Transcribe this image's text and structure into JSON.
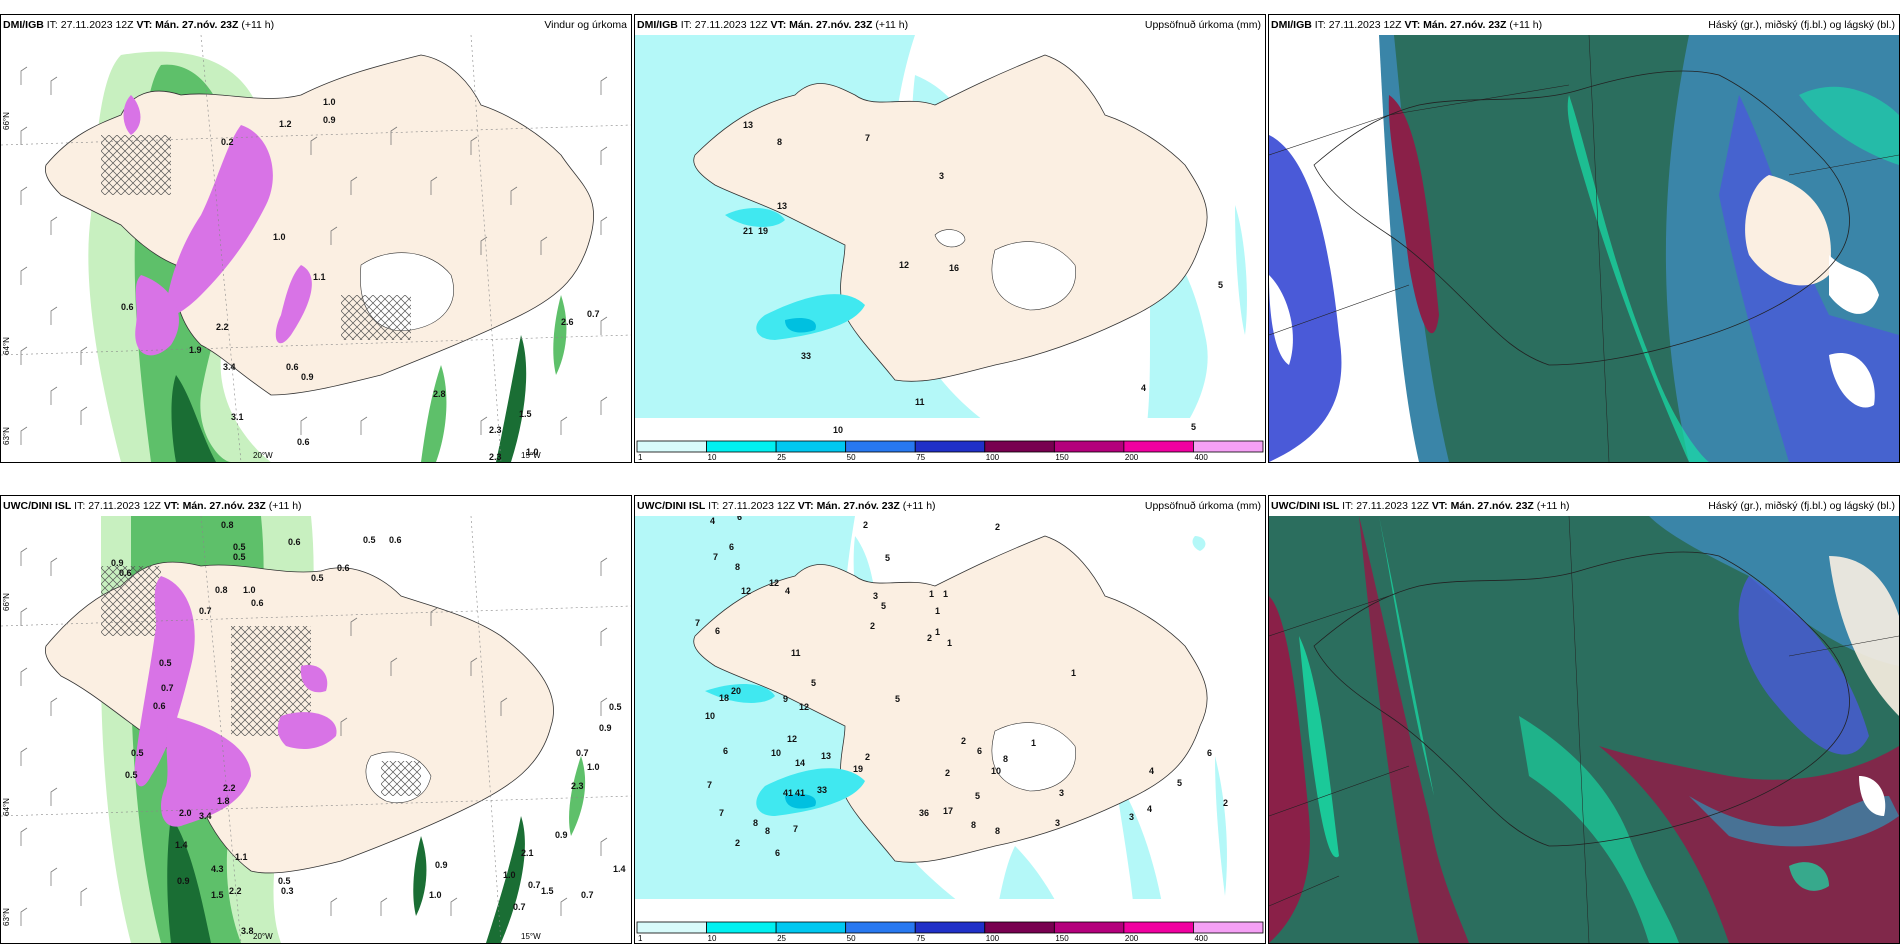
{
  "panels": [
    {
      "model": "DMI/IGB",
      "it_label": "IT:",
      "it": "27.11.2023 12Z",
      "vt_label": "VT:",
      "vt": "Mán. 27.nóv. 23Z",
      "lead": "(+11 h)",
      "product": "Vindur og úrkoma"
    },
    {
      "model": "DMI/IGB",
      "it_label": "IT:",
      "it": "27.11.2023 12Z",
      "vt_label": "VT:",
      "vt": "Mán. 27.nóv. 23Z",
      "lead": "(+11 h)",
      "product": "Uppsöfnuð úrkoma (mm)"
    },
    {
      "model": "DMI/IGB",
      "it_label": "IT:",
      "it": "27.11.2023 12Z",
      "vt_label": "VT:",
      "vt": "Mán. 27.nóv. 23Z",
      "lead": "(+11 h)",
      "product": "Háský (gr.), miðský (fj.bl.) og lágský (bl.)"
    },
    {
      "model": "UWC/DINI ISL",
      "it_label": "IT:",
      "it": "27.11.2023 12Z",
      "vt_label": "VT:",
      "vt": "Mán. 27.nóv. 23Z",
      "lead": "(+11 h)",
      "product": "Uppsöfnuð úrkoma (mm)"
    },
    {
      "model": "UWC/DINI ISL",
      "it_label": "IT:",
      "it": "27.11.2023 12Z",
      "vt_label": "VT:",
      "vt": "Mán. 27.nóv. 23Z",
      "lead": "(+11 h)",
      "product": "Háský (gr.), miðský (fj.bl.) og lágský (bl.)"
    },
    {
      "model": "UWC/DINI ISL",
      "it_label": "IT:",
      "it": "27.11.2023 12Z",
      "vt_label": "VT:",
      "vt": "Mán. 27.nóv. 23Z",
      "lead": "(+11 h)",
      "product": "Háský (gr.), miðský (fj.bl.) og lágský (bl.)"
    }
  ],
  "bottom_left_header": {
    "model": "UWC/DINI ISL",
    "it_label": "IT:",
    "it": "27.11.2023 12Z",
    "vt_label": "VT:",
    "vt": "Mán. 27.nóv. 23Z",
    "lead": "(+11 h)",
    "product": ""
  },
  "grid_labels": {
    "lat_66": "66°N",
    "lat_64": "64°N",
    "lat_63": "63°N",
    "lon_20": "20°W",
    "lon_15": "15°W"
  },
  "colorbar": {
    "ticks": [
      "1",
      "10",
      "25",
      "50",
      "75",
      "100",
      "150",
      "200",
      "400"
    ],
    "colors": [
      "#d8fbfb",
      "#00f0f0",
      "#00c8f0",
      "#2878f0",
      "#2030c8",
      "#780050",
      "#b4007c",
      "#f000a0",
      "#f5a0f5"
    ]
  },
  "colors": {
    "land": "#fbefe2",
    "precip_light": "#b4f8f8",
    "precip_mid": "#40e8f0",
    "precip_dark": "#00c0e0",
    "rain_green_1": "#c8f0c0",
    "rain_green_2": "#5ec06a",
    "rain_green_3": "#1a6e34",
    "pink": "#d873e6",
    "cloud_high": "#2b6e5e",
    "cloud_mid": "#3a85a8",
    "cloud_low": "#4a5ad8",
    "cloud_teal": "#18e0a8",
    "cloud_red": "#8a2048"
  },
  "top_left_values": [
    "1.0",
    "0.9",
    "0.2",
    "1.2",
    "1.0",
    "1.1",
    "0.6",
    "2.2",
    "1.9",
    "3.4",
    "0.6",
    "3.1",
    "0.6",
    "2.8",
    "1.5",
    "2.3",
    "1.0",
    "2.3",
    "0.7",
    "2.6",
    "0.9"
  ],
  "top_mid_values": [
    "13",
    "8",
    "7",
    "3",
    "13",
    "21",
    "19",
    "12",
    "16",
    "33",
    "5",
    "4",
    "11",
    "10",
    "5"
  ],
  "bottom_left_values": [
    "0.8",
    "0.5",
    "0.5",
    "0.6",
    "0.5",
    "0.6",
    "0.6",
    "0.8",
    "0.6",
    "1.0",
    "0.5",
    "0.7",
    "0.9",
    "0.6",
    "0.5",
    "0.7",
    "0.6",
    "2.0",
    "4.3",
    "3.4",
    "1.8",
    "2.2",
    "0.9",
    "0.5",
    "0.3",
    "1.5",
    "2.2",
    "1.1",
    "1.4",
    "3.8",
    "0.5",
    "1.0",
    "0.9",
    "0.7",
    "1.0",
    "2.3",
    "0.7",
    "0.9",
    "1.5",
    "1.4",
    "0.7",
    "0.5",
    "0.9",
    "0.7",
    "1.0",
    "2.1",
    "0.5"
  ],
  "bottom_mid_values": [
    "4",
    "6",
    "2",
    "2",
    "7",
    "6",
    "8",
    "7",
    "5",
    "12",
    "6",
    "4",
    "3",
    "5",
    "2",
    "1",
    "1",
    "1",
    "1",
    "2",
    "1",
    "18",
    "20",
    "11",
    "12",
    "5",
    "9",
    "12",
    "10",
    "6",
    "7",
    "7",
    "10",
    "13",
    "14",
    "12",
    "19",
    "41",
    "41",
    "33",
    "7",
    "6",
    "2",
    "5",
    "2",
    "6",
    "8",
    "10",
    "5",
    "1",
    "1",
    "6",
    "4",
    "5",
    "3",
    "3",
    "3",
    "4",
    "2",
    "36",
    "8",
    "8",
    "8",
    "2",
    "8",
    "17",
    "2"
  ]
}
